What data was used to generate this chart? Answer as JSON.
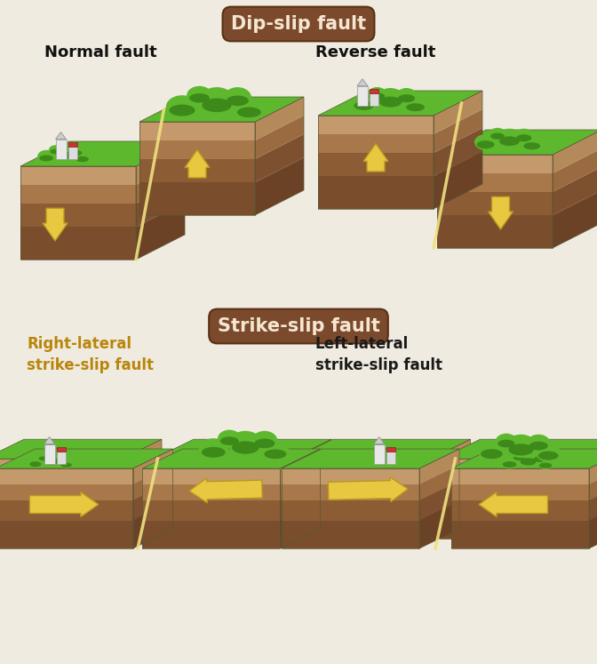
{
  "bg_color": "#f0ebe0",
  "title1": "Dip-slip fault",
  "title2": "Strike-slip fault",
  "title_bg": "#7b4a2d",
  "title_fg": "#f5e6d0",
  "subtitle1_left": "Normal fault",
  "subtitle1_right": "Reverse fault",
  "subtitle2_left": "Right-lateral\nstrike-slip fault",
  "subtitle2_right": "Left-lateral\nstrike-slip fault",
  "subtitle2_left_color": "#b8860b",
  "subtitle2_right_color": "#1a1a1a",
  "grass_bright": "#5db82e",
  "grass_dark": "#3d8a1a",
  "grass_side": "#4aa022",
  "soil_front_dark": "#7a4e2d",
  "soil_front_mid": "#8c5c35",
  "soil_front_light": "#a8784a",
  "soil_front_top": "#c49a6c",
  "soil_side_dark": "#6b4226",
  "soil_side_mid": "#7d5030",
  "soil_side_light": "#9a6b40",
  "soil_side_top": "#b58a5a",
  "arrow_color": "#e8c840",
  "arrow_outline": "#b89820",
  "fault_line_color": "#f0e080",
  "shadow_color": "#c8b898"
}
